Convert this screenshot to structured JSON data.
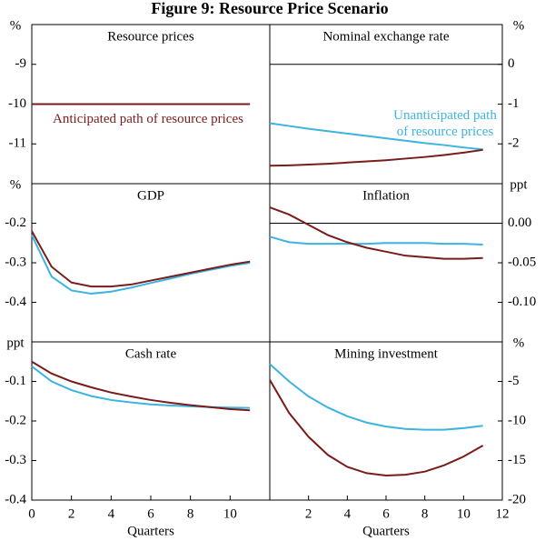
{
  "title": "Figure 9: Resource Price Scenario",
  "chart_data": [
    {
      "type": "line",
      "title": "Resource prices",
      "unit": "%",
      "xlim": [
        0,
        12
      ],
      "ylim": [
        -12,
        -8
      ],
      "yticks": [
        -11,
        -10,
        -9
      ],
      "x": [
        0,
        1,
        2,
        3,
        4,
        5,
        6,
        7,
        8,
        9,
        10,
        11
      ],
      "series": [
        {
          "color": "#7b1c1c",
          "values": [
            -10,
            -10,
            -10,
            -10,
            -10,
            -10,
            -10,
            -10,
            -10,
            -10,
            -10,
            -10
          ]
        }
      ],
      "annotation": {
        "color": "#7b1c1c",
        "lines": [
          "Anticipated path of resource prices"
        ]
      }
    },
    {
      "type": "line",
      "title": "Nominal exchange rate",
      "unit": "%",
      "xlim": [
        0,
        12
      ],
      "ylim": [
        -3,
        1
      ],
      "yticks": [
        -2,
        -1,
        0
      ],
      "x": [
        0,
        1,
        2,
        3,
        4,
        5,
        6,
        7,
        8,
        9,
        10,
        11
      ],
      "series": [
        {
          "color": "#3cb4e0",
          "values": [
            -1.48,
            -1.55,
            -1.62,
            -1.68,
            -1.74,
            -1.8,
            -1.86,
            -1.92,
            -1.98,
            -2.03,
            -2.09,
            -2.14
          ]
        },
        {
          "color": "#7b1c1c",
          "values": [
            -2.55,
            -2.54,
            -2.52,
            -2.5,
            -2.47,
            -2.44,
            -2.41,
            -2.37,
            -2.33,
            -2.28,
            -2.22,
            -2.15
          ]
        }
      ],
      "annotation": {
        "color": "#3cb4e0",
        "lines": [
          "Unanticipated path",
          "of resource prices"
        ]
      }
    },
    {
      "type": "line",
      "title": "GDP",
      "unit": "%",
      "xlim": [
        0,
        12
      ],
      "ylim": [
        -0.5,
        -0.1
      ],
      "yticks": [
        -0.4,
        -0.3,
        -0.2
      ],
      "x": [
        0,
        1,
        2,
        3,
        4,
        5,
        6,
        7,
        8,
        9,
        10,
        11
      ],
      "series": [
        {
          "color": "#3cb4e0",
          "values": [
            -0.23,
            -0.335,
            -0.37,
            -0.378,
            -0.373,
            -0.363,
            -0.351,
            -0.34,
            -0.328,
            -0.318,
            -0.308,
            -0.3
          ]
        },
        {
          "color": "#7b1c1c",
          "values": [
            -0.22,
            -0.31,
            -0.35,
            -0.36,
            -0.36,
            -0.355,
            -0.345,
            -0.335,
            -0.325,
            -0.315,
            -0.305,
            -0.297
          ]
        }
      ]
    },
    {
      "type": "line",
      "title": "Inflation",
      "unit": "ppt",
      "xlim": [
        0,
        12
      ],
      "ylim": [
        -0.15,
        0.05
      ],
      "yticks": [
        {
          "value": -0.1,
          "label": "-0.10"
        },
        {
          "value": -0.05,
          "label": "-0.05"
        },
        {
          "value": 0,
          "label": "0.00"
        }
      ],
      "x": [
        0,
        1,
        2,
        3,
        4,
        5,
        6,
        7,
        8,
        9,
        10,
        11
      ],
      "series": [
        {
          "color": "#3cb4e0",
          "values": [
            -0.017,
            -0.024,
            -0.026,
            -0.026,
            -0.026,
            -0.026,
            -0.025,
            -0.025,
            -0.025,
            -0.026,
            -0.026,
            -0.027
          ]
        },
        {
          "color": "#7b1c1c",
          "values": [
            0.02,
            0.011,
            -0.002,
            -0.015,
            -0.024,
            -0.031,
            -0.036,
            -0.041,
            -0.043,
            -0.045,
            -0.045,
            -0.044
          ]
        }
      ]
    },
    {
      "type": "line",
      "title": "Cash rate",
      "unit": "ppt",
      "xlim": [
        0,
        12
      ],
      "ylim": [
        -0.4,
        0
      ],
      "yticks": [
        -0.4,
        -0.3,
        -0.2,
        -0.1
      ],
      "xticks": [
        0,
        2,
        4,
        6,
        8,
        10
      ],
      "xlabel": "Quarters",
      "x": [
        0,
        1,
        2,
        3,
        4,
        5,
        6,
        7,
        8,
        9,
        10,
        11
      ],
      "series": [
        {
          "color": "#3cb4e0",
          "values": [
            -0.062,
            -0.1,
            -0.122,
            -0.137,
            -0.147,
            -0.153,
            -0.158,
            -0.161,
            -0.163,
            -0.165,
            -0.166,
            -0.167
          ]
        },
        {
          "color": "#7b1c1c",
          "values": [
            -0.05,
            -0.08,
            -0.1,
            -0.115,
            -0.128,
            -0.138,
            -0.147,
            -0.154,
            -0.16,
            -0.165,
            -0.17,
            -0.173
          ]
        }
      ]
    },
    {
      "type": "line",
      "title": "Mining investment",
      "unit": "%",
      "xlim": [
        0,
        12
      ],
      "ylim": [
        -20,
        0
      ],
      "yticks": [
        -20,
        -15,
        -10,
        -5
      ],
      "xticks": [
        2,
        4,
        6,
        8,
        10,
        12
      ],
      "xlabel": "Quarters",
      "x": [
        0,
        1,
        2,
        3,
        4,
        5,
        6,
        7,
        8,
        9,
        10,
        11
      ],
      "series": [
        {
          "color": "#3cb4e0",
          "values": [
            -2.8,
            -5,
            -6.9,
            -8.3,
            -9.4,
            -10.2,
            -10.7,
            -11,
            -11.1,
            -11.1,
            -10.9,
            -10.6
          ]
        },
        {
          "color": "#7b1c1c",
          "values": [
            -4.8,
            -9,
            -12,
            -14.3,
            -15.8,
            -16.6,
            -16.9,
            -16.8,
            -16.4,
            -15.6,
            -14.5,
            -13.1
          ]
        }
      ]
    }
  ]
}
